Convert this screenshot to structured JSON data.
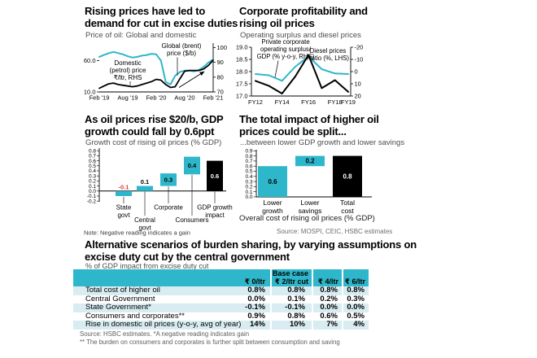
{
  "colors": {
    "cyan": "#2eb7ca",
    "pale_row": "#d8ecf2",
    "red": "#e63c2f",
    "black": "#000000",
    "gray": "#4d4d4d",
    "light_gray": "#6e6e6e"
  },
  "panels": [
    {
      "title_lines": [
        "Rising prices have led to",
        "demand for cut in excise duties"
      ],
      "subtitle": "Price of oil: Global and domestic"
    },
    {
      "title_lines": [
        "Corporate profitability and",
        "rising oil prices"
      ],
      "subtitle": "Operating surplus and diesel prices"
    },
    {
      "title_lines": [
        "As oil prices rise $20/b, GDP",
        "growth could fall by 0.6ppt"
      ],
      "subtitle": "Growth cost of rising oil prices (% GDP)"
    },
    {
      "title_lines": [
        "The total impact of higher oil",
        "prices could be split..."
      ],
      "subtitle": "...between lower GDP growth and lower savings"
    }
  ],
  "bottom_section": {
    "title_lines": [
      "Alternative scenarios of burden sharing, by varying assumptions on",
      "excise duty cut by the central government"
    ],
    "subtitle": "% of GDP impact from excise duty cut"
  },
  "chart_data": [
    {
      "type": "line",
      "title": "Price of oil: Global and domestic",
      "x_labels": [
        "Feb '19",
        "Aug '19",
        "Feb '20",
        "Aug '20",
        "Feb '21"
      ],
      "left_axis": {
        "range": [
          10,
          88
        ],
        "ticks": [
          60,
          10
        ],
        "tick_labels": [
          "60.0",
          "10.0"
        ]
      },
      "right_axis": {
        "range": [
          70,
          103
        ],
        "ticks": [
          100,
          90,
          80,
          70
        ],
        "tick_labels": [
          "100",
          "90",
          "80",
          "70"
        ]
      },
      "series": [
        {
          "name": "Global (brent) price ($/b)",
          "axis": "left",
          "color": "cyan",
          "values": [
            66,
            69,
            72,
            74,
            72,
            70,
            67,
            65,
            66,
            68,
            69,
            71,
            70,
            60,
            26,
            22,
            36,
            42,
            44,
            44,
            43,
            45,
            50,
            57,
            62
          ]
        },
        {
          "name": "Domestic (petrol) price ₹/ltr, RHS",
          "axis": "right",
          "color": "black",
          "values": [
            72.5,
            74,
            75.5,
            76,
            75,
            74.5,
            74,
            73.5,
            74,
            75,
            76,
            77,
            78.5,
            78,
            75,
            73,
            73.5,
            79,
            84,
            84.5,
            84.5,
            84.5,
            85.5,
            88,
            91.5
          ]
        }
      ],
      "annotations": [
        {
          "lines": [
            "Global (brent)",
            "price ($/b)"
          ]
        },
        {
          "lines": [
            "Domestic",
            "(petrol) price",
            "₹/ltr, RHS"
          ]
        }
      ]
    },
    {
      "type": "line",
      "title": "Operating surplus and diesel prices",
      "x_labels": [
        "FY12",
        "FY14",
        "FY16",
        "FY18",
        "FY19"
      ],
      "x_label_idx": [
        0,
        2,
        4,
        6,
        7
      ],
      "left_axis": {
        "range": [
          17,
          19
        ],
        "ticks": [
          19,
          18.5,
          18,
          17.5,
          17
        ],
        "tick_labels": [
          "19.0",
          "18.5",
          "18.0",
          "17.5",
          "17.0"
        ]
      },
      "right_axis": {
        "range": [
          -20,
          20
        ],
        "inverted": true,
        "ticks": [
          -20,
          -10,
          0,
          10,
          20
        ],
        "tick_labels": [
          "-20",
          "-10",
          "0",
          "10",
          "20"
        ]
      },
      "series": [
        {
          "name": "Private corporate operating surplus/GDP (% y-o-y, RHS)",
          "axis": "right",
          "color": "cyan",
          "values": [
            2,
            3,
            7.5,
            -4,
            -12.5,
            -2,
            1.5,
            2
          ]
        },
        {
          "name": "Diesel prices Ratio (%, LHS)",
          "axis": "left",
          "color": "black",
          "values": [
            17.62,
            17.42,
            17.1,
            17.8,
            18.68,
            17.32,
            17.65,
            17.17
          ]
        }
      ],
      "annotations": [
        {
          "lines": [
            "Private corporate",
            "operating surplus/",
            "GDP (% y-o-y, RHS)"
          ]
        },
        {
          "lines": [
            "Diesel prices",
            "Ratio (%, LHS)"
          ]
        }
      ]
    },
    {
      "type": "waterfall",
      "title": "Growth cost of rising oil prices (% GDP)",
      "y_axis": {
        "ticks": [
          0.8,
          0.7,
          0.6,
          0.5,
          0.4,
          0.3,
          0.2,
          0.1,
          0,
          -0.1,
          -0.2
        ],
        "tick_labels": [
          "0.8",
          "0.7",
          "0.6",
          "0.5",
          "0.4",
          "0.3",
          "0.2",
          "0.1",
          "0.0",
          "-0.1",
          "-0.2"
        ]
      },
      "bars": [
        {
          "label_lines": [
            "State",
            "govt"
          ],
          "value": "-0.1",
          "start": -0.1,
          "end": 0,
          "color": "cyan",
          "value_color": "red",
          "value_pos": "above",
          "stagger": false
        },
        {
          "label_lines": [
            "Central",
            "govt"
          ],
          "value": "0.1",
          "start": 0,
          "end": 0.1,
          "color": "cyan",
          "value_color": "black",
          "value_pos": "above",
          "stagger": true
        },
        {
          "label_lines": [
            "Corporate"
          ],
          "value": "0.3",
          "start": 0.1,
          "end": 0.35,
          "color": "cyan",
          "value_color": "black",
          "value_pos": "inside",
          "stagger": false
        },
        {
          "label_lines": [
            "Consumers"
          ],
          "value": "0.4",
          "start": 0.33,
          "end": 0.68,
          "color": "cyan",
          "value_color": "black",
          "value_pos": "inside",
          "stagger": true
        },
        {
          "label_lines": [
            "GDP growth",
            "impact"
          ],
          "value": "0.6",
          "start": 0,
          "end": 0.6,
          "color": "black",
          "value_color": "white",
          "value_pos": "inside",
          "stagger": false
        }
      ],
      "note": "Note: Negative reading indicates a gain"
    },
    {
      "type": "bar",
      "title": "Overall cost of rising oil prices (% GDP)",
      "y_axis": {
        "ticks": [
          0.9,
          0.8,
          0.7,
          0.6,
          0.5,
          0.4,
          0.3,
          0.2,
          0.1,
          0
        ],
        "tick_labels": [
          "0.9",
          "0.8",
          "0.7",
          "0.6",
          "0.5",
          "0.4",
          "0.3",
          "0.2",
          "0.1",
          "0.0"
        ]
      },
      "bars": [
        {
          "label_lines": [
            "Lower",
            "growth"
          ],
          "value": "0.6",
          "start": 0,
          "end": 0.6,
          "color": "cyan",
          "value_color": "black"
        },
        {
          "label_lines": [
            "Lower",
            "savings"
          ],
          "value": "0.2",
          "start": 0.6,
          "end": 0.8,
          "color": "cyan",
          "value_color": "black"
        },
        {
          "label_lines": [
            "Total",
            "cost"
          ],
          "value": "0.8",
          "start": 0,
          "end": 0.8,
          "color": "black",
          "value_color": "white"
        }
      ],
      "caption": "Overall cost of rising oil prices (% GDP)",
      "source": "Source: MOSPI, CEIC, HSBC estimates"
    }
  ],
  "table": {
    "header": {
      "group_label": "Base case",
      "col1": "₹ 0/ltr",
      "col2": "₹ 2/ltr cut",
      "col3": "₹ 4/ltr",
      "col4": "₹ 6/ltr"
    },
    "rows": [
      {
        "label": "Total cost of higher oil",
        "values": [
          "0.8%",
          "0.8%",
          "0.8%",
          "0.8%"
        ]
      },
      {
        "label": "Central Government",
        "values": [
          "0.0%",
          "0.1%",
          "0.2%",
          "0.3%"
        ]
      },
      {
        "label": "State Government*",
        "values": [
          "-0.1%",
          "-0.1%",
          "0.0%",
          "0.0%"
        ]
      },
      {
        "label": "Consumers and corporates**",
        "values": [
          "0.9%",
          "0.8%",
          "0.6%",
          "0.5%"
        ]
      },
      {
        "label": "Rise in domestic oil prices (y-o-y, avg of year)",
        "values": [
          "14%",
          "10%",
          "7%",
          "4%"
        ]
      }
    ],
    "footnotes": [
      "Source: HSBC estimates. *A negative reading indicates gain",
      "** The burden on consumers and corporates is further split between consumption and saving"
    ]
  }
}
